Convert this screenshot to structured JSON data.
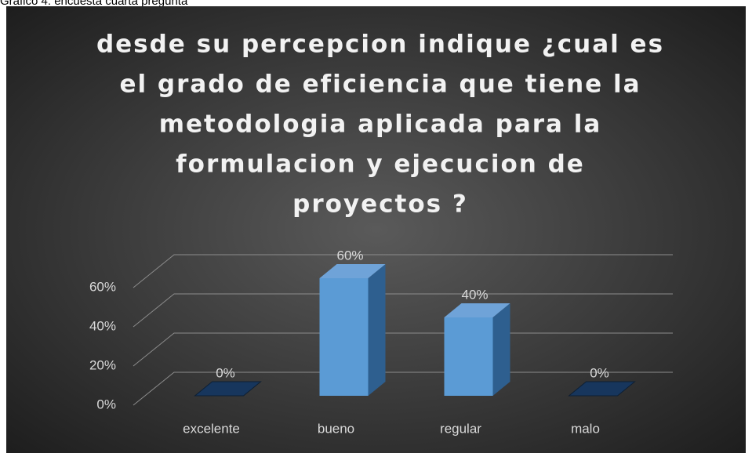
{
  "caption": "Gráfico 4: encuesta cuarta pregunta",
  "chart_data": {
    "type": "bar3d",
    "title": [
      "desde su percepcion indique ¿cual es",
      "el grado de eficiencia que tiene la",
      "metodologia aplicada para la",
      "formulacion y ejecucion de",
      "proyectos ?"
    ],
    "categories": [
      "excelente",
      "bueno",
      "regular",
      "malo"
    ],
    "values": [
      0,
      60,
      40,
      0
    ],
    "value_labels": [
      "0%",
      "60%",
      "40%",
      "0%"
    ],
    "color": "#5b9bd5",
    "ylim": [
      0,
      60
    ],
    "yticks": [
      {
        "value": 0,
        "label": "0%"
      },
      {
        "value": 20,
        "label": "20%"
      },
      {
        "value": 40,
        "label": "40%"
      },
      {
        "value": 60,
        "label": "60%"
      }
    ],
    "grid": true
  }
}
